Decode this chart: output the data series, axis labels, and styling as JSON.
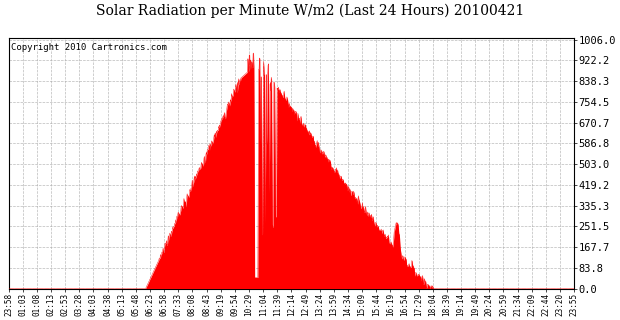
{
  "title": "Solar Radiation per Minute W/m2 (Last 24 Hours) 20100421",
  "copyright": "Copyright 2010 Cartronics.com",
  "fill_color": "#FF0000",
  "line_color": "#FF0000",
  "background_color": "#FFFFFF",
  "plot_bg_color": "#FFFFFF",
  "grid_color": "#AAAAAA",
  "dashed_line_color": "#FF0000",
  "yticks": [
    0.0,
    83.8,
    167.7,
    251.5,
    335.3,
    419.2,
    503.0,
    586.8,
    670.7,
    754.5,
    838.3,
    922.2,
    1006.0
  ],
  "ymin": 0.0,
  "ymax": 1006.0,
  "xtick_labels": [
    "23:58",
    "01:03",
    "01:08",
    "02:13",
    "02:53",
    "03:28",
    "04:03",
    "04:38",
    "05:13",
    "05:48",
    "06:23",
    "06:58",
    "07:33",
    "08:08",
    "08:43",
    "09:19",
    "09:54",
    "10:29",
    "11:04",
    "11:39",
    "12:14",
    "12:49",
    "13:24",
    "13:59",
    "14:34",
    "15:09",
    "15:44",
    "16:19",
    "16:54",
    "17:29",
    "18:04",
    "18:39",
    "19:14",
    "19:49",
    "20:24",
    "20:59",
    "21:34",
    "22:09",
    "22:44",
    "23:20",
    "23:55"
  ],
  "num_points": 1440,
  "title_fontsize": 10,
  "copyright_fontsize": 6.5,
  "ytick_fontsize": 7.5,
  "xtick_fontsize": 5.5
}
